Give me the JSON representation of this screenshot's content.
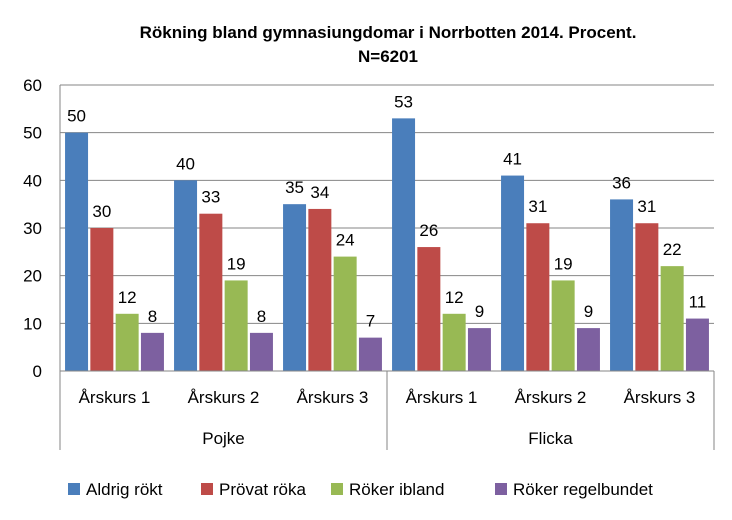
{
  "chart_data": {
    "type": "bar",
    "title_lines": [
      "Rökning bland gymnasiungdomar i Norrbotten 2014. Procent.",
      "N=6201"
    ],
    "groups": [
      {
        "label": "Pojke",
        "categories": [
          "Årskurs 1",
          "Årskurs 2",
          "Årskurs 3"
        ]
      },
      {
        "label": "Flicka",
        "categories": [
          "Årskurs 1",
          "Årskurs 2",
          "Årskurs 3"
        ]
      }
    ],
    "series": [
      {
        "name": "Aldrig rökt",
        "color": "#4a7ebb",
        "values": [
          50,
          40,
          35,
          53,
          41,
          36
        ]
      },
      {
        "name": "Prövat röka",
        "color": "#be4b48",
        "values": [
          30,
          33,
          34,
          26,
          31,
          31
        ]
      },
      {
        "name": "Röker ibland",
        "color": "#98b954",
        "values": [
          12,
          19,
          24,
          12,
          19,
          22
        ]
      },
      {
        "name": "Röker regelbundet",
        "color": "#7d60a0",
        "values": [
          8,
          8,
          7,
          9,
          9,
          11
        ]
      }
    ],
    "ylim": [
      0,
      60
    ],
    "yticks": [
      0,
      10,
      20,
      30,
      40,
      50,
      60
    ],
    "grid": true,
    "legend": "bottom"
  }
}
